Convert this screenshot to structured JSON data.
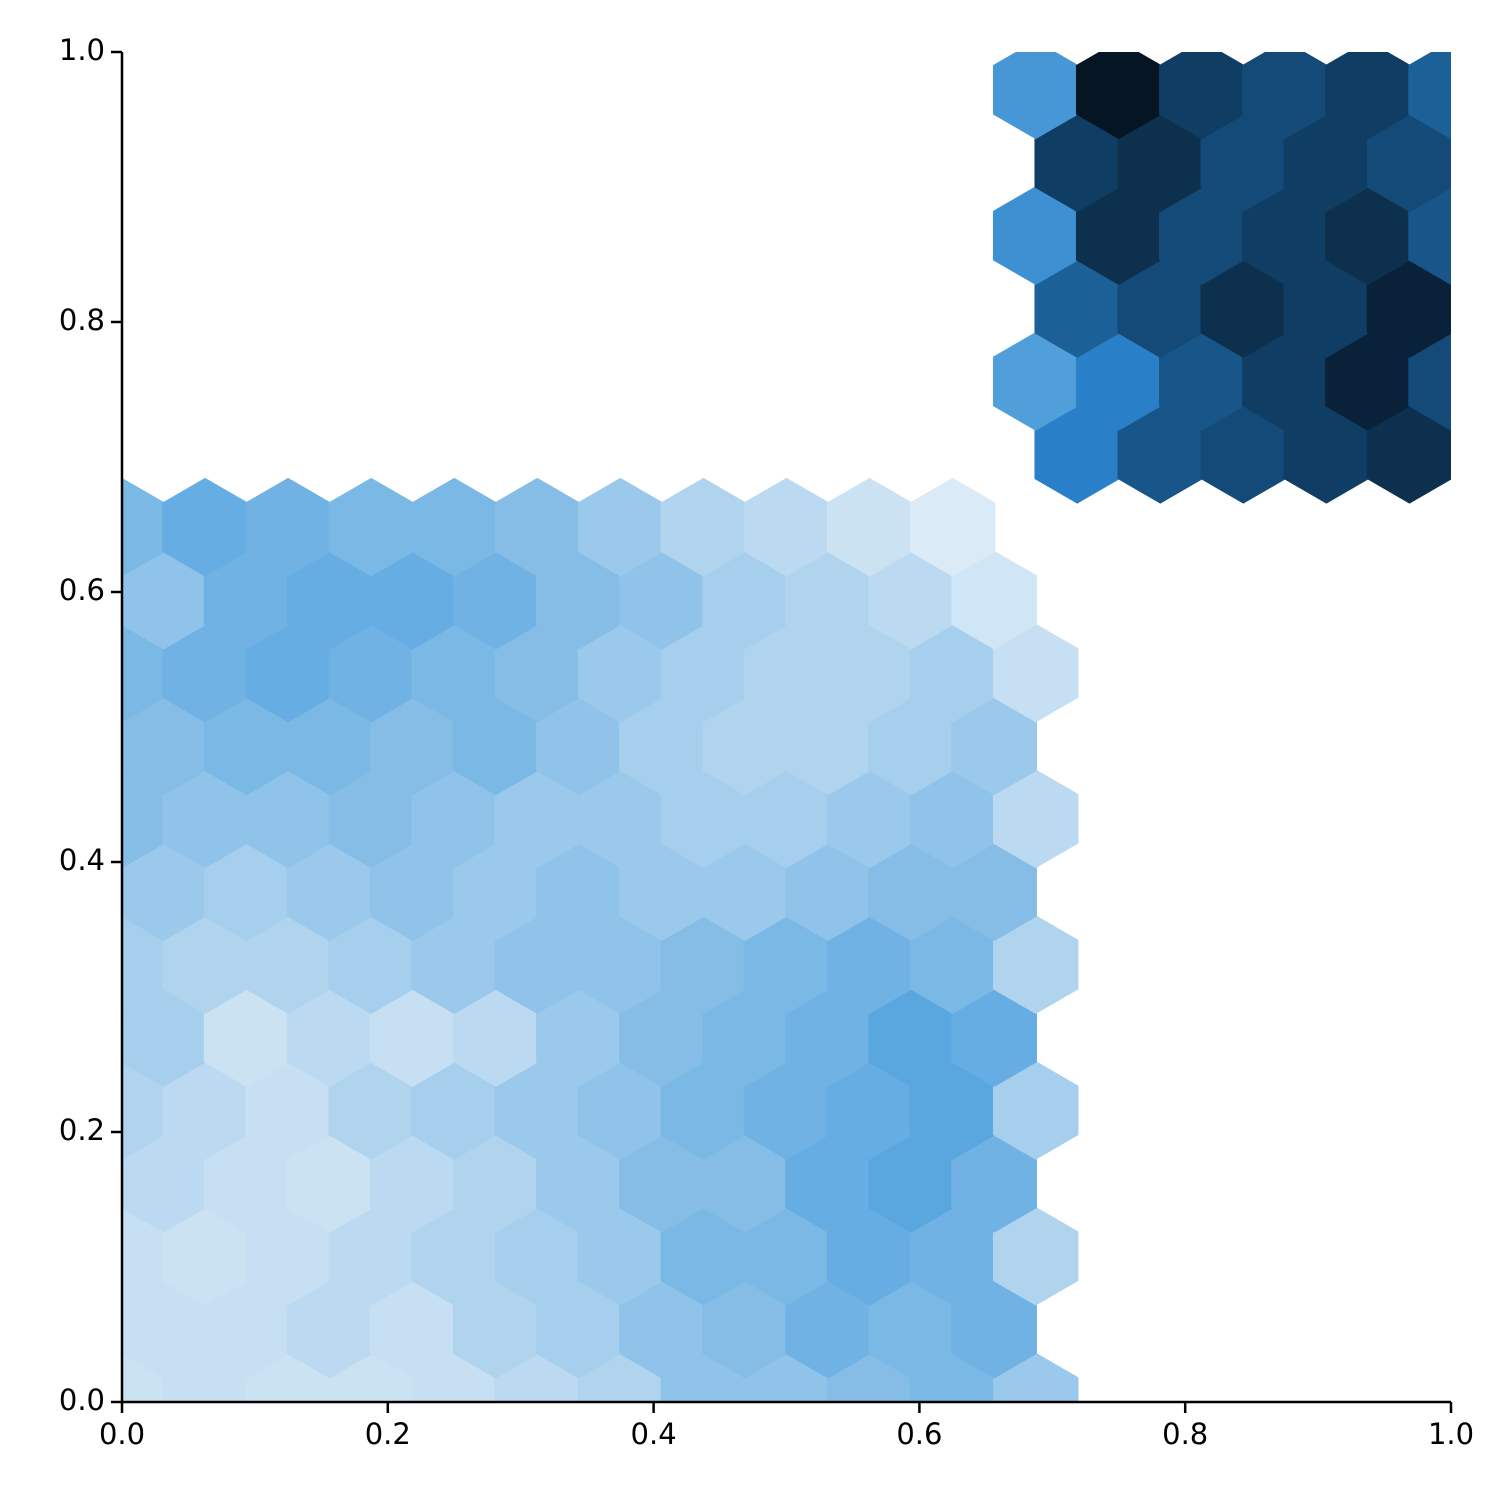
{
  "chart_data": {
    "type": "hexbin",
    "xlim": [
      0,
      1
    ],
    "ylim": [
      0,
      1
    ],
    "xticks": [
      {
        "value": 0,
        "label": "0.0"
      },
      {
        "value": 0.2,
        "label": "0.2"
      },
      {
        "value": 0.4,
        "label": "0.4"
      },
      {
        "value": 0.6,
        "label": "0.6"
      },
      {
        "value": 0.8,
        "label": "0.8"
      },
      {
        "value": 1,
        "label": "1.0"
      }
    ],
    "yticks": [
      {
        "value": 0,
        "label": "0.0"
      },
      {
        "value": 0.2,
        "label": "0.2"
      },
      {
        "value": 0.4,
        "label": "0.4"
      },
      {
        "value": 0.6,
        "label": "0.6"
      },
      {
        "value": 0.8,
        "label": "0.8"
      },
      {
        "value": 1,
        "label": "1.0"
      }
    ],
    "cmap": [
      "#f7fbff",
      "#c6dff2",
      "#5aa7e0",
      "#2a80c8",
      "#134a78",
      "#03080f"
    ],
    "vmax": 50,
    "x_even": [
      0,
      0.0625,
      0.125,
      0.1875,
      0.25,
      0.3125,
      0.375,
      0.4375,
      0.5,
      0.5625,
      0.625,
      0.6875,
      0.75,
      0.8125,
      0.875,
      0.9375,
      1
    ],
    "x_odd": [
      0.03125,
      0.09375,
      0.15625,
      0.21875,
      0.28125,
      0.34375,
      0.40625,
      0.46875,
      0.53125,
      0.59375,
      0.65625,
      0.71875,
      0.78125,
      0.84375,
      0.90625,
      0.96875
    ],
    "y": [
      0,
      0.054,
      0.108,
      0.162,
      0.216,
      0.27,
      0.324,
      0.378,
      0.432,
      0.486,
      0.54,
      0.594,
      0.648,
      0.702,
      0.756,
      0.81,
      0.864,
      0.918,
      0.972
    ],
    "counts": [
      [
        9,
        10,
        9,
        9,
        10,
        11,
        12,
        15,
        15,
        16,
        17,
        14,
        null,
        null,
        null,
        null,
        null
      ],
      [
        10,
        10,
        11,
        10,
        12,
        13,
        15,
        16,
        18,
        17,
        18,
        null,
        null,
        null,
        null,
        null
      ],
      [
        10,
        9,
        10,
        11,
        12,
        13,
        14,
        17,
        17,
        19,
        18,
        12,
        null,
        null,
        null,
        null,
        null
      ],
      [
        11,
        10,
        9,
        11,
        12,
        14,
        16,
        16,
        19,
        20,
        18,
        null,
        null,
        null,
        null,
        null
      ],
      [
        12,
        11,
        10,
        12,
        13,
        14,
        15,
        17,
        18,
        19,
        20,
        13,
        null,
        null,
        null,
        null,
        null
      ],
      [
        13,
        9,
        11,
        10,
        11,
        14,
        16,
        17,
        18,
        20,
        19,
        null,
        null,
        null,
        null,
        null
      ],
      [
        13,
        12,
        12,
        13,
        14,
        15,
        15,
        16,
        17,
        18,
        17,
        12,
        null,
        null,
        null,
        null,
        null
      ],
      [
        14,
        13,
        14,
        15,
        14,
        15,
        14,
        14,
        15,
        16,
        16,
        null,
        null,
        null,
        null,
        null
      ],
      [
        16,
        15,
        15,
        16,
        15,
        14,
        14,
        13,
        13,
        14,
        15,
        11,
        null,
        null,
        null,
        null,
        null
      ],
      [
        16,
        17,
        17,
        16,
        17,
        15,
        13,
        12,
        12,
        13,
        14,
        null,
        null,
        null,
        null,
        null
      ],
      [
        17,
        18,
        19,
        18,
        17,
        16,
        14,
        13,
        12,
        12,
        13,
        10,
        null,
        null,
        null,
        null,
        null
      ],
      [
        15,
        18,
        19,
        19,
        18,
        16,
        15,
        13,
        12,
        11,
        8,
        null,
        null,
        null,
        null,
        null
      ],
      [
        17,
        19,
        18,
        17,
        17,
        16,
        14,
        12,
        11,
        9,
        6,
        null,
        null,
        null,
        null,
        null,
        null
      ],
      [
        null,
        null,
        null,
        null,
        null,
        null,
        null,
        null,
        null,
        null,
        null,
        30,
        38,
        40,
        42,
        44
      ],
      [
        null,
        null,
        null,
        null,
        null,
        null,
        null,
        null,
        null,
        null,
        null,
        22,
        30,
        38,
        42,
        46,
        40
      ],
      [
        null,
        null,
        null,
        null,
        null,
        null,
        null,
        null,
        null,
        null,
        null,
        36,
        40,
        44,
        42,
        46
      ],
      [
        null,
        null,
        null,
        null,
        null,
        null,
        null,
        null,
        null,
        null,
        null,
        26,
        44,
        40,
        42,
        44,
        38
      ],
      [
        null,
        null,
        null,
        null,
        null,
        null,
        null,
        null,
        null,
        null,
        null,
        42,
        44,
        40,
        42,
        40
      ],
      [
        null,
        null,
        null,
        null,
        null,
        null,
        null,
        null,
        null,
        null,
        null,
        24,
        48,
        42,
        40,
        42,
        36
      ]
    ]
  }
}
